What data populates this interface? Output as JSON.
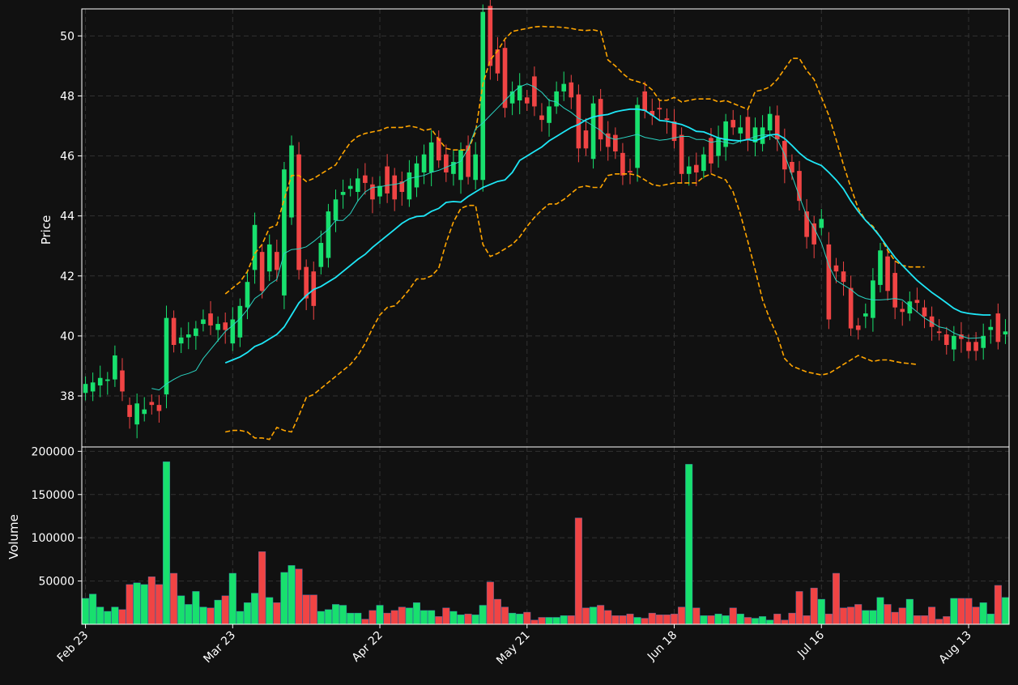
{
  "chart_data": [
    {
      "type": "candlestick",
      "title": "",
      "xlabel": "",
      "ylabel": "Price",
      "ylim": [
        36.3,
        50.9
      ],
      "yticks": [
        38,
        40,
        42,
        44,
        46,
        48,
        50
      ],
      "x_tick_labels": [
        "Feb 23",
        "Mar 23",
        "Apr 22",
        "May 21",
        "Jun 18",
        "Jul 16",
        "Aug 13"
      ],
      "grid": true,
      "indicators": [
        "Moving average (short)",
        "Moving average (long)",
        "Upper band",
        "Lower band"
      ],
      "colors": {
        "up": "#18e06e",
        "down": "#f04444",
        "short_ma": "#2ad4c2",
        "long_ma": "#1ee6f6",
        "bands": "#ffa500",
        "background": "#111111",
        "grid": "#333333"
      },
      "series": [
        {
          "name": "Close",
          "values": [
            38.4,
            38.45,
            38.6,
            38.55,
            39.35,
            38.15,
            37.3,
            37.75,
            37.55,
            37.7,
            37.5,
            40.6,
            39.7,
            39.95,
            40.05,
            40.25,
            40.55,
            40.35,
            40.4,
            40.2,
            40.55,
            41.0,
            41.8,
            43.7,
            41.5,
            43.05,
            42.2,
            45.55,
            46.35,
            42.2,
            41.25,
            41.0,
            43.1,
            44.15,
            44.55,
            44.8,
            45.0,
            45.25,
            45.1,
            44.55,
            45.0,
            44.75,
            44.55,
            44.8,
            45.45,
            45.75,
            46.05,
            46.45,
            45.85,
            45.45,
            45.8,
            46.2,
            45.3,
            46.05,
            50.8,
            49.0,
            48.75,
            47.6,
            48.15,
            48.35,
            47.75,
            47.65,
            47.2,
            47.65,
            48.15,
            48.4,
            47.95,
            46.25,
            46.25,
            47.75,
            46.55,
            46.3,
            46.15,
            45.35,
            45.45,
            47.7,
            47.5,
            47.35,
            47.55,
            47.2,
            46.5,
            45.4,
            45.65,
            45.45,
            46.05,
            45.75,
            46.6,
            47.15,
            46.95,
            46.95,
            46.55,
            46.95,
            46.95,
            47.4,
            46.55,
            45.55,
            45.45,
            44.5,
            43.3,
            43.05,
            43.9,
            40.55,
            42.15,
            41.8,
            40.25,
            40.2,
            40.75,
            41.85,
            42.85,
            41.5,
            40.95,
            40.8,
            41.15,
            41.1,
            40.65,
            40.3,
            40.1,
            39.7,
            40.0,
            39.9,
            39.5,
            39.5,
            40.0,
            40.3,
            39.8,
            40.15
          ]
        },
        {
          "name": "Open",
          "values": [
            38.1,
            38.15,
            38.35,
            38.5,
            38.55,
            38.85,
            37.7,
            37.05,
            37.4,
            37.8,
            37.7,
            38.05,
            40.6,
            39.75,
            39.95,
            40.0,
            40.4,
            40.75,
            40.2,
            40.45,
            39.75,
            39.95,
            40.95,
            42.2,
            42.8,
            42.15,
            42.8,
            41.35,
            43.95,
            46.05,
            42.3,
            42.15,
            42.3,
            42.6,
            43.85,
            44.7,
            44.9,
            44.8,
            45.35,
            45.05,
            44.65,
            45.65,
            45.35,
            45.15,
            44.55,
            44.95,
            45.45,
            45.45,
            46.6,
            46.05,
            45.4,
            45.2,
            46.35,
            45.2,
            45.2,
            51.0,
            49.55,
            49.6,
            47.75,
            47.85,
            47.95,
            48.65,
            47.35,
            47.1,
            47.65,
            48.15,
            48.45,
            48.05,
            46.85,
            45.9,
            47.9,
            46.75,
            46.7,
            46.1,
            45.5,
            45.6,
            48.15,
            47.5,
            47.6,
            47.25,
            47.15,
            46.7,
            45.4,
            45.7,
            45.5,
            46.6,
            46.0,
            46.3,
            47.2,
            46.75,
            47.3,
            46.45,
            46.4,
            46.85,
            47.35,
            46.5,
            45.8,
            45.5,
            44.15,
            43.75,
            43.6,
            43.05,
            42.35,
            42.15,
            41.6,
            40.35,
            40.65,
            40.6,
            41.7,
            42.65,
            42.1,
            40.9,
            40.75,
            41.2,
            40.95,
            40.65,
            40.15,
            40.05,
            39.55,
            40.05,
            39.8,
            39.8,
            39.6,
            40.2,
            40.75,
            40.05
          ]
        },
        {
          "name": "Volume",
          "values": [
            30000,
            35000,
            20000,
            15000,
            20000,
            17000,
            46000,
            48000,
            46000,
            55000,
            46000,
            188000,
            59000,
            33000,
            23000,
            38000,
            20000,
            19000,
            28000,
            33000,
            59000,
            15000,
            25000,
            36000,
            84000,
            31000,
            25000,
            60000,
            68000,
            64000,
            34000,
            34000,
            15000,
            17000,
            23000,
            22000,
            13000,
            13000,
            6000,
            16000,
            22000,
            13000,
            16000,
            20000,
            19000,
            25000,
            16000,
            16000,
            9000,
            19000,
            15000,
            11000,
            12000,
            11000,
            22000,
            49000,
            29000,
            20000,
            13000,
            12000,
            14000,
            5000,
            8000,
            8000,
            8000,
            10000,
            10000,
            123000,
            19000,
            20000,
            22000,
            16000,
            10000,
            10000,
            12000,
            8000,
            7000,
            13000,
            11000,
            11000,
            12000,
            20000,
            185000,
            19000,
            10000,
            10000,
            12000,
            10000,
            19000,
            12000,
            8000,
            7000,
            9000,
            5000,
            12000,
            5000,
            13000,
            38000,
            10000,
            42000,
            29000,
            12000,
            59000,
            19000,
            20000,
            23000,
            16000,
            16000,
            31000,
            23000,
            14000,
            19000,
            29000,
            10000,
            10000,
            20000,
            6000,
            9000,
            30000,
            30000,
            30000,
            20000,
            25000,
            12000,
            45000,
            31000,
            26000,
            25000
          ]
        },
        {
          "name": "Moving average (short)",
          "values": [
            null,
            null,
            null,
            null,
            null,
            null,
            null,
            null,
            null,
            38.25,
            38.2,
            38.4,
            38.55,
            38.68,
            38.75,
            38.85,
            39.25,
            39.55,
            39.85,
            40.15,
            40.35,
            40.58,
            40.88,
            41.25,
            41.42,
            41.72,
            41.88,
            42.75,
            42.88,
            42.9,
            42.97,
            43.15,
            43.35,
            43.55,
            43.85,
            43.85,
            44.08,
            44.5,
            44.8,
            44.95,
            44.97,
            45.02,
            45.05,
            45.1,
            45.25,
            45.3,
            45.35,
            45.45,
            45.52,
            45.62,
            45.72,
            45.82,
            46.25,
            46.9,
            47.1,
            47.35,
            47.6,
            47.85,
            48.1,
            48.3,
            48.4,
            48.3,
            48.12,
            47.85,
            47.8,
            47.6,
            47.45,
            47.25,
            47.15,
            47.0,
            46.85,
            46.62,
            46.55,
            46.6,
            46.66,
            46.72,
            46.62,
            46.57,
            46.52,
            46.55,
            46.6,
            46.65,
            46.65,
            46.55,
            46.55,
            46.45,
            46.5,
            46.45,
            46.4,
            46.5,
            46.55,
            46.65,
            46.7,
            46.7,
            46.55,
            46.05,
            45.35,
            44.65,
            44.0,
            43.6,
            43.1,
            42.35,
            41.85,
            41.7,
            41.55,
            41.35,
            41.25,
            41.2,
            41.2,
            41.22,
            41.25,
            41.2,
            41.0,
            40.8,
            40.6,
            40.45,
            40.3,
            40.25,
            40.1,
            40.0,
            39.92,
            39.93,
            39.95
          ]
        },
        {
          "name": "Moving average (long)",
          "values": [
            null,
            null,
            null,
            null,
            null,
            null,
            null,
            null,
            null,
            null,
            null,
            null,
            null,
            null,
            null,
            null,
            null,
            null,
            null,
            39.1,
            39.2,
            39.3,
            39.45,
            39.65,
            39.75,
            39.9,
            40.05,
            40.3,
            40.7,
            41.1,
            41.35,
            41.55,
            41.65,
            41.8,
            41.95,
            42.15,
            42.35,
            42.55,
            42.72,
            42.95,
            43.15,
            43.35,
            43.55,
            43.75,
            43.9,
            43.98,
            44.0,
            44.15,
            44.25,
            44.45,
            44.48,
            44.46,
            44.65,
            44.8,
            44.95,
            45.05,
            45.15,
            45.2,
            45.45,
            45.85,
            46.0,
            46.15,
            46.3,
            46.5,
            46.65,
            46.8,
            46.95,
            47.05,
            47.2,
            47.3,
            47.35,
            47.38,
            47.47,
            47.52,
            47.56,
            47.56,
            47.52,
            47.36,
            47.18,
            47.16,
            47.1,
            47.05,
            46.95,
            46.82,
            46.8,
            46.7,
            46.6,
            46.55,
            46.52,
            46.5,
            46.55,
            46.5,
            46.6,
            46.7,
            46.72,
            46.58,
            46.35,
            46.1,
            45.9,
            45.78,
            45.68,
            45.45,
            45.2,
            44.9,
            44.5,
            44.15,
            43.85,
            43.6,
            43.3,
            42.95,
            42.62,
            42.35,
            42.1,
            41.85,
            41.65,
            41.45,
            41.28,
            41.1,
            40.92,
            40.8,
            40.75,
            40.72,
            40.7,
            40.7
          ]
        },
        {
          "name": "Upper band",
          "values": [
            null,
            null,
            null,
            null,
            null,
            null,
            null,
            null,
            null,
            null,
            null,
            null,
            null,
            null,
            null,
            null,
            null,
            null,
            null,
            41.4,
            41.6,
            41.8,
            42.15,
            42.75,
            43.05,
            43.6,
            43.7,
            44.55,
            45.35,
            45.35,
            45.15,
            45.25,
            45.4,
            45.55,
            45.7,
            46.1,
            46.45,
            46.65,
            46.75,
            46.8,
            46.85,
            46.95,
            46.95,
            46.95,
            47.0,
            46.95,
            46.85,
            46.9,
            46.55,
            46.25,
            46.2,
            46.2,
            46.2,
            46.8,
            48.4,
            49.2,
            49.5,
            49.9,
            50.15,
            50.2,
            50.25,
            50.3,
            50.32,
            50.3,
            50.3,
            50.28,
            50.25,
            50.2,
            50.18,
            50.2,
            50.15,
            49.2,
            49.0,
            48.75,
            48.55,
            48.48,
            48.4,
            48.2,
            47.85,
            47.85,
            47.95,
            47.8,
            47.85,
            47.9,
            47.9,
            47.9,
            47.8,
            47.85,
            47.75,
            47.65,
            47.55,
            48.15,
            48.2,
            48.3,
            48.55,
            48.9,
            49.25,
            49.25,
            48.85,
            48.55,
            47.95,
            47.35,
            46.55,
            45.7,
            44.95,
            44.25,
            43.85,
            43.65,
            43.3,
            42.85,
            42.5,
            42.35,
            42.3,
            42.3,
            42.3
          ]
        },
        {
          "name": "Lower band",
          "values": [
            null,
            null,
            null,
            null,
            null,
            null,
            null,
            null,
            null,
            null,
            null,
            null,
            null,
            null,
            null,
            null,
            null,
            null,
            null,
            36.8,
            36.85,
            36.85,
            36.8,
            36.6,
            36.6,
            36.55,
            36.95,
            36.85,
            36.8,
            37.35,
            37.95,
            38.05,
            38.25,
            38.45,
            38.65,
            38.85,
            39.05,
            39.35,
            39.75,
            40.25,
            40.7,
            40.95,
            41.0,
            41.25,
            41.55,
            41.9,
            41.9,
            42.0,
            42.25,
            43.1,
            43.8,
            44.25,
            44.35,
            44.35,
            43.05,
            42.65,
            42.75,
            42.9,
            43.05,
            43.3,
            43.65,
            43.95,
            44.2,
            44.4,
            44.4,
            44.55,
            44.75,
            44.95,
            45.0,
            44.95,
            44.95,
            45.35,
            45.4,
            45.4,
            45.4,
            45.35,
            45.2,
            45.05,
            45.0,
            45.05,
            45.1,
            45.1,
            45.1,
            45.1,
            45.3,
            45.4,
            45.3,
            45.2,
            44.8,
            44.05,
            43.15,
            42.2,
            41.2,
            40.55,
            40.0,
            39.25,
            39.0,
            38.9,
            38.8,
            38.75,
            38.7,
            38.75,
            38.9,
            39.05,
            39.2,
            39.35,
            39.25,
            39.15,
            39.2,
            39.2,
            39.15,
            39.1,
            39.08,
            39.05
          ]
        }
      ]
    },
    {
      "type": "bar",
      "title": "",
      "xlabel": "",
      "ylabel": "Volume",
      "ylim": [
        0,
        205000
      ],
      "yticks": [
        50000,
        100000,
        150000,
        200000
      ],
      "ytick_labels": [
        "50000",
        "100000",
        "150000",
        "200000"
      ],
      "grid": true,
      "note_series": "Bar colors follow candle direction"
    }
  ]
}
